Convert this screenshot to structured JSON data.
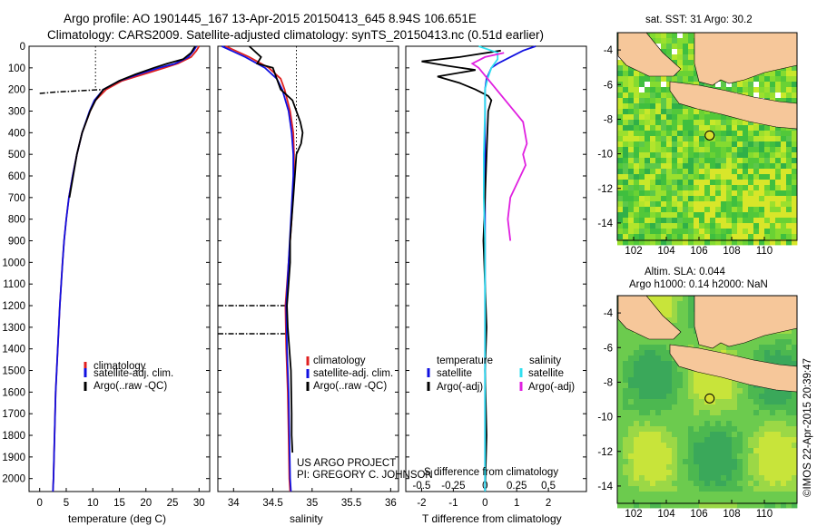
{
  "title": {
    "line1": "Argo profile: AO 1901445_167 13-Apr-2015 20150413_645 8.94S 106.651E",
    "line2": "Climatology: CARS2009. Satellite-adjusted climatology: synTS_20150413.nc (0.51d earlier)"
  },
  "watermark": "©IMOS 22-Apr-2015 20:39:47",
  "project_note": {
    "line1": "US ARGO PROJECT",
    "line2": "PI: GREGORY C. JOHNSON"
  },
  "colors": {
    "climatology": "#e02020",
    "satellite": "#1010e0",
    "argo": "#000000",
    "sat_diff_s": "#30e0f0",
    "argo_diff_s": "#e020e0",
    "land": "#f6c79a"
  },
  "chart_data": [
    {
      "type": "line",
      "id": "temperature",
      "xlabel": "temperature (deg C)",
      "ylabel": "depth",
      "xlim": [
        -2,
        32
      ],
      "ylim": [
        0,
        2060
      ],
      "xticks": [
        0,
        5,
        10,
        15,
        20,
        25,
        30
      ],
      "yticks": [
        0,
        100,
        200,
        300,
        400,
        500,
        600,
        700,
        800,
        900,
        1000,
        1100,
        1200,
        1300,
        1400,
        1500,
        1600,
        1700,
        1800,
        1900,
        2000
      ],
      "legend": [
        "climatology",
        "satellite-adj. clim.",
        "Argo(..raw -QC)"
      ],
      "series": [
        {
          "name": "climatology",
          "depth": [
            0,
            20,
            50,
            80,
            100,
            130,
            160,
            200,
            250,
            300,
            400,
            500,
            600,
            700,
            800,
            900,
            1000,
            1200,
            1400,
            1600,
            1800,
            2000,
            2060
          ],
          "values": [
            30.0,
            29.5,
            28.5,
            26.0,
            23.5,
            19.5,
            15.5,
            12.5,
            10.5,
            9.5,
            8.0,
            7.0,
            6.2,
            5.5,
            5.0,
            4.6,
            4.3,
            3.8,
            3.4,
            3.0,
            2.8,
            2.6,
            2.5
          ]
        },
        {
          "name": "satellite-adj. clim.",
          "depth": [
            0,
            20,
            50,
            80,
            100,
            130,
            160,
            200,
            250,
            300,
            400,
            500,
            600,
            700,
            800,
            900,
            1000,
            1200,
            1400,
            1600,
            1800,
            2000,
            2060
          ],
          "values": [
            29.5,
            29.0,
            28.0,
            25.5,
            22.5,
            18.5,
            15.0,
            12.0,
            10.3,
            9.4,
            8.0,
            7.0,
            6.2,
            5.5,
            5.0,
            4.6,
            4.3,
            3.8,
            3.4,
            3.0,
            2.8,
            2.6,
            2.5
          ]
        },
        {
          "name": "Argo(..raw -QC)",
          "depth": [
            0,
            10,
            30,
            60,
            80,
            100,
            130,
            160,
            200,
            250,
            300,
            400,
            500,
            600,
            700
          ],
          "values": [
            29.3,
            29.0,
            28.5,
            27.0,
            24.0,
            21.5,
            18.0,
            15.0,
            12.0,
            10.5,
            9.5,
            8.0,
            7.0,
            6.3,
            5.6
          ]
        },
        {
          "name": "Argo raw (dotted)",
          "depth": [
            0,
            200
          ],
          "values": [
            10.5,
            10.5
          ]
        },
        {
          "name": "Argo flagged (dash-dot)",
          "depth": [
            218,
            212,
            208,
            204,
            200
          ],
          "values": [
            0.0,
            3.0,
            6.0,
            9.0,
            12.0
          ]
        }
      ]
    },
    {
      "type": "line",
      "id": "salinity",
      "xlabel": "salinity",
      "xlim": [
        33.8,
        36.1
      ],
      "ylim": [
        0,
        2060
      ],
      "xticks": [
        34,
        34.5,
        35,
        35.5,
        36
      ],
      "legend": [
        "climatology",
        "satellite-adj. clim.",
        "Argo(..raw -QC)"
      ],
      "series": [
        {
          "name": "climatology",
          "depth": [
            0,
            50,
            100,
            150,
            200,
            300,
            400,
            500,
            600,
            800,
            1000,
            1200,
            1400,
            1600,
            1800,
            2000,
            2060
          ],
          "values": [
            33.9,
            34.2,
            34.45,
            34.6,
            34.65,
            34.72,
            34.76,
            34.77,
            34.77,
            34.74,
            34.7,
            34.66,
            34.67,
            34.69,
            34.7,
            34.71,
            34.72
          ]
        },
        {
          "name": "satellite-adj. clim.",
          "depth": [
            0,
            50,
            100,
            150,
            200,
            300,
            400,
            500,
            600,
            800,
            1000,
            1200,
            1400,
            1600,
            1800,
            2000,
            2060
          ],
          "values": [
            33.85,
            34.15,
            34.4,
            34.55,
            34.62,
            34.7,
            34.74,
            34.76,
            34.76,
            34.73,
            34.7,
            34.67,
            34.68,
            34.7,
            34.71,
            34.72,
            34.73
          ]
        },
        {
          "name": "Argo(..raw -QC)",
          "depth": [
            0,
            50,
            80,
            100,
            150,
            200,
            250,
            300,
            350,
            400,
            450,
            500,
            600,
            700,
            800,
            900,
            1000,
            1100,
            1200,
            1300,
            1500,
            1700,
            1800,
            1880
          ],
          "values": [
            34.2,
            34.35,
            34.3,
            34.5,
            34.55,
            34.6,
            34.75,
            34.8,
            34.85,
            34.88,
            34.86,
            34.8,
            34.78,
            34.76,
            34.74,
            34.72,
            34.72,
            34.7,
            34.68,
            34.69,
            34.73,
            34.74,
            34.74,
            34.75
          ]
        },
        {
          "name": "Argo raw (dotted)",
          "depth": [
            0,
            500
          ],
          "values": [
            34.8,
            34.8
          ]
        },
        {
          "name": "Argo flagged 1200 (dash-dot)",
          "depth": [
            1200,
            1200
          ],
          "values": [
            33.8,
            34.68
          ]
        },
        {
          "name": "Argo flagged 1330 (dash-dot)",
          "depth": [
            1330,
            1330
          ],
          "values": [
            33.8,
            34.69
          ]
        }
      ]
    },
    {
      "type": "line",
      "id": "differences",
      "xlabel_top": "S difference from climatology",
      "xlabel": "T difference from climatology",
      "xlim": [
        -2.5,
        3.2
      ],
      "ylim": [
        0,
        2060
      ],
      "xticks_T": [
        -2,
        -1,
        0,
        1,
        2
      ],
      "xticks_S_labels": [
        "-0.5",
        "-0.25",
        "0",
        "0.25",
        "0.5"
      ],
      "xticks_S": [
        -0.5,
        -0.25,
        0,
        0.25,
        0.5
      ],
      "legend_left_title": "temperature",
      "legend_right_title": "salinity",
      "legend_left": [
        "satellite",
        "Argo(-adj)"
      ],
      "legend_right": [
        "satellite",
        "Argo(-adj)"
      ],
      "series": [
        {
          "name": "T satellite",
          "depth": [
            0,
            20,
            50,
            80,
            100,
            150,
            200,
            300,
            500,
            700,
            900,
            1100,
            1300,
            1500,
            1800,
            2060
          ],
          "values": [
            1.6,
            1.2,
            0.8,
            0.4,
            0.2,
            0.05,
            0,
            0,
            0,
            0,
            0,
            0,
            0,
            0,
            0,
            0
          ]
        },
        {
          "name": "T Argo(-adj)",
          "depth": [
            20,
            50,
            70,
            90,
            110,
            140,
            170,
            200,
            230,
            250,
            300,
            500,
            700,
            900,
            1100,
            1300,
            1500,
            1800,
            2060
          ],
          "values": [
            0.5,
            -0.8,
            -2.0,
            -1.2,
            -0.3,
            -1.5,
            -0.8,
            -0.3,
            0.1,
            0.2,
            0.1,
            0.05,
            0.0,
            -0.05,
            0.0,
            0.05,
            0.0,
            0.05,
            0.0
          ]
        },
        {
          "name": "S satellite",
          "depth": [
            0,
            30,
            60,
            100,
            150,
            200,
            300,
            500,
            700,
            900,
            1100,
            1300,
            1500,
            1800,
            2060
          ],
          "values": [
            -0.05,
            0.1,
            0.1,
            0.05,
            0.02,
            0.0,
            0.0,
            -0.01,
            -0.01,
            0.0,
            0.0,
            0.0,
            0.0,
            0.0,
            0.0
          ]
        },
        {
          "name": "S Argo(-adj)",
          "depth": [
            30,
            50,
            80,
            100,
            350,
            450,
            500,
            550,
            700,
            800,
            900
          ],
          "values": [
            0.15,
            0.0,
            -0.1,
            -0.05,
            0.3,
            0.33,
            0.3,
            0.32,
            0.2,
            0.18,
            0.2
          ]
        }
      ]
    },
    {
      "type": "heatmap",
      "id": "sst_map",
      "title": "sat. SST: 31  Argo: 30.2",
      "xticks": [
        102,
        104,
        106,
        108,
        110
      ],
      "yticks": [
        -4,
        -6,
        -8,
        -10,
        -12,
        -14
      ],
      "xlim": [
        101,
        112
      ],
      "ylim": [
        -15,
        -3
      ],
      "float_position": {
        "lon": 106.651,
        "lat": -8.94
      }
    },
    {
      "type": "heatmap",
      "id": "sla_map",
      "title_line1": "Altim. SLA: 0.044",
      "title_line2": "Argo h1000: 0.14  h2000: NaN",
      "xticks": [
        102,
        104,
        106,
        108,
        110
      ],
      "yticks": [
        -4,
        -6,
        -8,
        -10,
        -12,
        -14
      ],
      "xlim": [
        101,
        112
      ],
      "ylim": [
        -15,
        -3
      ],
      "float_position": {
        "lon": 106.651,
        "lat": -8.94
      }
    }
  ]
}
